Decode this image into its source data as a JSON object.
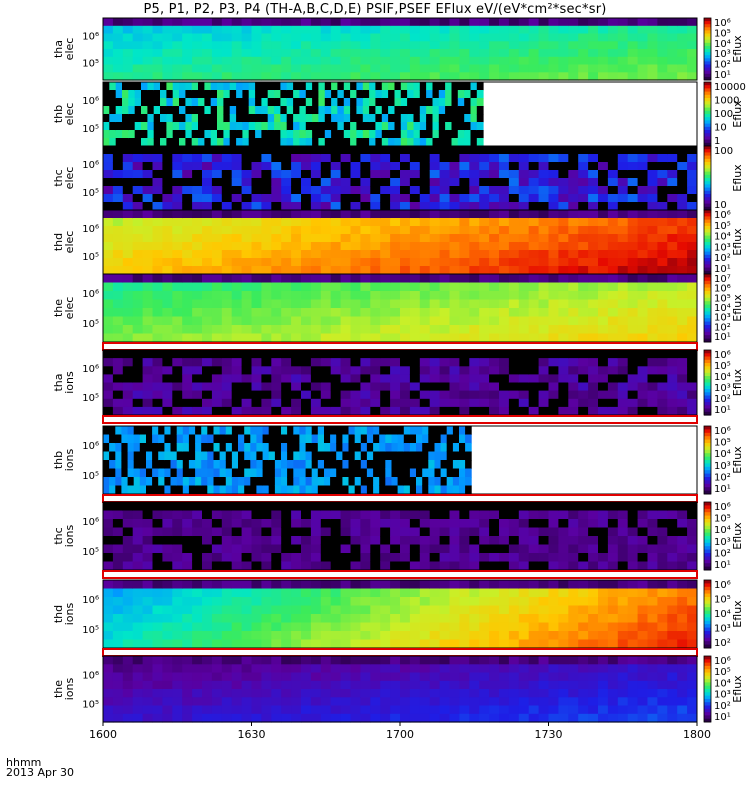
{
  "chart_data": {
    "type": "heatmap",
    "title": "P5, P1, P2, P3, P4 (TH-A,B,C,D,E) PSIF,PSEF EFlux eV/(eV*cm²*sec*sr)",
    "x_axis": {
      "ticks": [
        "1600",
        "1630",
        "1700",
        "1730",
        "1800"
      ],
      "label_lines": [
        "hhmm",
        "2013 Apr 30"
      ]
    },
    "colorbar_label": "Eflux",
    "panels": [
      {
        "name": "tha elec",
        "label_lines": [
          "tha",
          "elec"
        ],
        "y_ticks": [
          "10⁵",
          "10⁶"
        ],
        "colorbar_ticks": [
          "10⁶",
          "10⁵",
          "10⁴",
          "10³",
          "10²",
          "10¹"
        ],
        "pattern": "smooth",
        "palette_shift": [
          0.45,
          0.55
        ],
        "data_end_fraction": 1.0,
        "red_separator": false
      },
      {
        "name": "thb elec",
        "label_lines": [
          "thb",
          "elec"
        ],
        "y_ticks": [
          "10⁵",
          "10⁶"
        ],
        "colorbar_ticks": [
          "10000",
          "1000",
          "100",
          "10",
          "1"
        ],
        "pattern": "block",
        "palette_shift": [
          0.35,
          0.55
        ],
        "data_end_fraction": 0.64,
        "red_separator": false
      },
      {
        "name": "thc elec",
        "label_lines": [
          "thc",
          "elec"
        ],
        "y_ticks": [
          "10⁵",
          "10⁶"
        ],
        "colorbar_ticks": [
          "100",
          "10"
        ],
        "pattern": "noise",
        "palette_shift": [
          0.1,
          0.3
        ],
        "data_end_fraction": 1.0,
        "red_separator": false
      },
      {
        "name": "thd elec",
        "label_lines": [
          "thd",
          "elec"
        ],
        "y_ticks": [
          "10⁵",
          "10⁶"
        ],
        "colorbar_ticks": [
          "10⁶",
          "10⁵",
          "10⁴",
          "10³",
          "10²",
          "10¹"
        ],
        "pattern": "smooth",
        "palette_shift": [
          0.7,
          0.95
        ],
        "data_end_fraction": 1.0,
        "red_separator": false
      },
      {
        "name": "the elec",
        "label_lines": [
          "the",
          "elec"
        ],
        "y_ticks": [
          "10⁵",
          "10⁶"
        ],
        "colorbar_ticks": [
          "10⁷",
          "10⁶",
          "10⁵",
          "10⁴",
          "10³",
          "10²",
          "10¹"
        ],
        "pattern": "smooth",
        "palette_shift": [
          0.55,
          0.7
        ],
        "data_end_fraction": 1.0,
        "red_separator": true
      },
      {
        "name": "tha ions",
        "label_lines": [
          "tha",
          "ions"
        ],
        "y_ticks": [
          "10⁵",
          "10⁶"
        ],
        "colorbar_ticks": [
          "10⁶",
          "10⁵",
          "10⁴",
          "10³",
          "10²",
          "10¹"
        ],
        "pattern": "noise",
        "palette_shift": [
          0.05,
          0.15
        ],
        "data_end_fraction": 1.0,
        "red_separator": true
      },
      {
        "name": "thb ions",
        "label_lines": [
          "thb",
          "ions"
        ],
        "y_ticks": [
          "10⁵",
          "10⁶"
        ],
        "colorbar_ticks": [
          "10⁶",
          "10⁵",
          "10⁴",
          "10³",
          "10²",
          "10¹"
        ],
        "pattern": "block",
        "palette_shift": [
          0.3,
          0.4
        ],
        "data_end_fraction": 0.62,
        "red_separator": true
      },
      {
        "name": "thc ions",
        "label_lines": [
          "thc",
          "ions"
        ],
        "y_ticks": [
          "10⁵",
          "10⁶"
        ],
        "colorbar_ticks": [
          "10⁶",
          "10⁵",
          "10⁴",
          "10³",
          "10²",
          "10¹"
        ],
        "pattern": "noise",
        "palette_shift": [
          0.05,
          0.12
        ],
        "data_end_fraction": 1.0,
        "red_separator": true
      },
      {
        "name": "thd ions",
        "label_lines": [
          "thd",
          "ions"
        ],
        "y_ticks": [
          "10⁵",
          "10⁶"
        ],
        "colorbar_ticks": [
          "10⁶",
          "10⁵",
          "10⁴",
          "10³",
          "10²"
        ],
        "pattern": "smooth",
        "palette_shift": [
          0.4,
          0.9
        ],
        "data_end_fraction": 1.0,
        "red_separator": true
      },
      {
        "name": "the ions",
        "label_lines": [
          "the",
          "ions"
        ],
        "y_ticks": [
          "10⁵",
          "10⁶"
        ],
        "colorbar_ticks": [
          "10⁶",
          "10⁵",
          "10⁴",
          "10³",
          "10²",
          "10¹"
        ],
        "pattern": "smooth",
        "palette_shift": [
          0.12,
          0.22
        ],
        "data_end_fraction": 1.0,
        "red_separator": false
      }
    ]
  }
}
